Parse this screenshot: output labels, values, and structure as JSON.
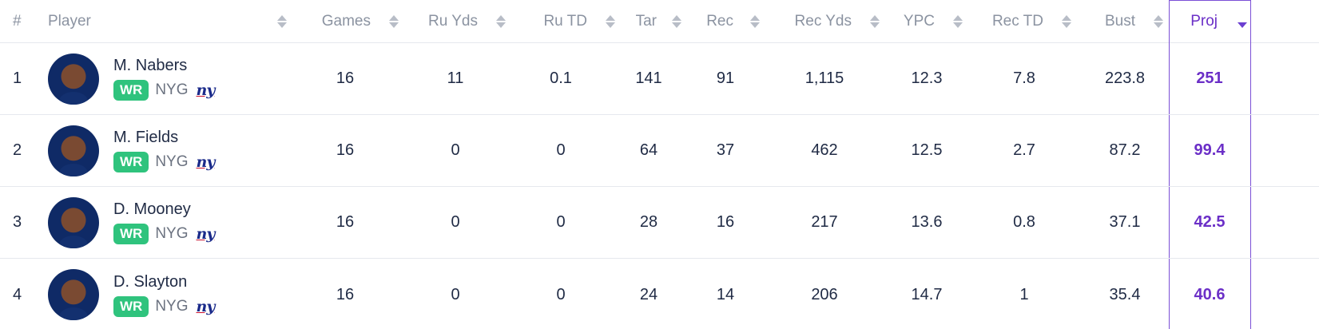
{
  "header": {
    "rank": "#",
    "player": "Player",
    "games": "Games",
    "ru_yds": "Ru Yds",
    "ru_td": "Ru TD",
    "tar": "Tar",
    "rec": "Rec",
    "rec_yds": "Rec Yds",
    "ypc": "YPC",
    "rec_td": "Rec TD",
    "bust": "Bust",
    "proj": "Proj"
  },
  "colors": {
    "accent": "#6b2fc7",
    "position_badge": "#2fc37d"
  },
  "rows": [
    {
      "rank": "1",
      "name": "M. Nabers",
      "pos": "WR",
      "team": "NYG",
      "logo": "ny",
      "games": "16",
      "ru_yds": "11",
      "ru_td": "0.1",
      "tar": "141",
      "rec": "91",
      "rec_yds": "1,115",
      "ypc": "12.3",
      "rec_td": "7.8",
      "bust": "223.8",
      "proj": "251"
    },
    {
      "rank": "2",
      "name": "M. Fields",
      "pos": "WR",
      "team": "NYG",
      "logo": "ny",
      "games": "16",
      "ru_yds": "0",
      "ru_td": "0",
      "tar": "64",
      "rec": "37",
      "rec_yds": "462",
      "ypc": "12.5",
      "rec_td": "2.7",
      "bust": "87.2",
      "proj": "99.4"
    },
    {
      "rank": "3",
      "name": "D. Mooney",
      "pos": "WR",
      "team": "NYG",
      "logo": "ny",
      "games": "16",
      "ru_yds": "0",
      "ru_td": "0",
      "tar": "28",
      "rec": "16",
      "rec_yds": "217",
      "ypc": "13.6",
      "rec_td": "0.8",
      "bust": "37.1",
      "proj": "42.5"
    },
    {
      "rank": "4",
      "name": "D. Slayton",
      "pos": "WR",
      "team": "NYG",
      "logo": "ny",
      "games": "16",
      "ru_yds": "0",
      "ru_td": "0",
      "tar": "24",
      "rec": "14",
      "rec_yds": "206",
      "ypc": "14.7",
      "rec_td": "1",
      "bust": "35.4",
      "proj": "40.6"
    }
  ]
}
